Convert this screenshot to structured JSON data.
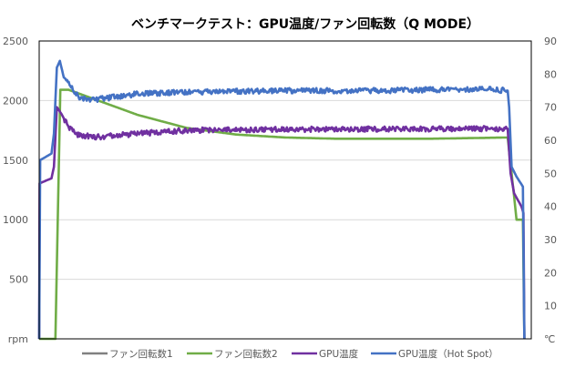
{
  "chart_data": {
    "type": "line",
    "title": "ベンチマークテスト：GPU温度/ファン回転数（Q MODE）",
    "ylabel": "rpm",
    "y2label": "℃",
    "xlabel": "",
    "ylim": [
      0,
      2500
    ],
    "y2lim": [
      0,
      90
    ],
    "yticks": [
      "2500",
      "2000",
      "1500",
      "1000",
      "500"
    ],
    "y2ticks": [
      "90",
      "80",
      "70",
      "60",
      "50",
      "40",
      "30",
      "20",
      "10"
    ],
    "yticks_values": [
      2500,
      2000,
      1500,
      1000,
      500
    ],
    "y2ticks_values": [
      90,
      80,
      70,
      60,
      50,
      40,
      30,
      20,
      10
    ],
    "xlim": [
      0,
      100
    ],
    "grid": true,
    "legend": "bottom",
    "series": [
      {
        "name": "ファン回転数1",
        "axis": "left",
        "color": "#808080",
        "points": []
      },
      {
        "name": "ファン回転数2",
        "axis": "left",
        "color": "#70AD47",
        "points": [
          [
            0,
            0
          ],
          [
            3.3,
            0
          ],
          [
            4.3,
            2090
          ],
          [
            6,
            2090
          ],
          [
            10,
            2030
          ],
          [
            20,
            1880
          ],
          [
            30,
            1770
          ],
          [
            40,
            1715
          ],
          [
            50,
            1690
          ],
          [
            60,
            1680
          ],
          [
            80,
            1680
          ],
          [
            95.2,
            1690
          ],
          [
            96.5,
            1200
          ],
          [
            97,
            1000
          ],
          [
            98.3,
            1000
          ],
          [
            98.6,
            0
          ]
        ]
      },
      {
        "name": "GPU温度",
        "axis": "right",
        "color": "#7030A0",
        "points": [
          [
            0,
            0
          ],
          [
            0.1,
            47
          ],
          [
            2.5,
            48.5
          ],
          [
            3,
            52
          ],
          [
            3.6,
            70
          ],
          [
            4.5,
            68
          ],
          [
            6,
            64
          ],
          [
            8,
            61.5
          ],
          [
            12,
            61
          ],
          [
            20,
            62
          ],
          [
            30,
            63
          ],
          [
            50,
            63.3
          ],
          [
            95.2,
            63.5
          ],
          [
            95.8,
            50
          ],
          [
            96.5,
            44
          ],
          [
            98,
            40
          ],
          [
            98.4,
            38
          ],
          [
            98.6,
            0
          ]
        ]
      },
      {
        "name": "GPU温度（Hot Spot）",
        "axis": "right",
        "color": "#4472C4",
        "points": [
          [
            0,
            0
          ],
          [
            0.2,
            54
          ],
          [
            2.5,
            56
          ],
          [
            3,
            62
          ],
          [
            3.6,
            82
          ],
          [
            4.2,
            84
          ],
          [
            5,
            79
          ],
          [
            6,
            77
          ],
          [
            8,
            73
          ],
          [
            10,
            72
          ],
          [
            15,
            73
          ],
          [
            20,
            74
          ],
          [
            30,
            74.5
          ],
          [
            50,
            75
          ],
          [
            70,
            75
          ],
          [
            90,
            75.5
          ],
          [
            95.2,
            75
          ],
          [
            95.5,
            70
          ],
          [
            96,
            52
          ],
          [
            97,
            49
          ],
          [
            98.3,
            46
          ],
          [
            98.6,
            0
          ]
        ]
      }
    ]
  }
}
